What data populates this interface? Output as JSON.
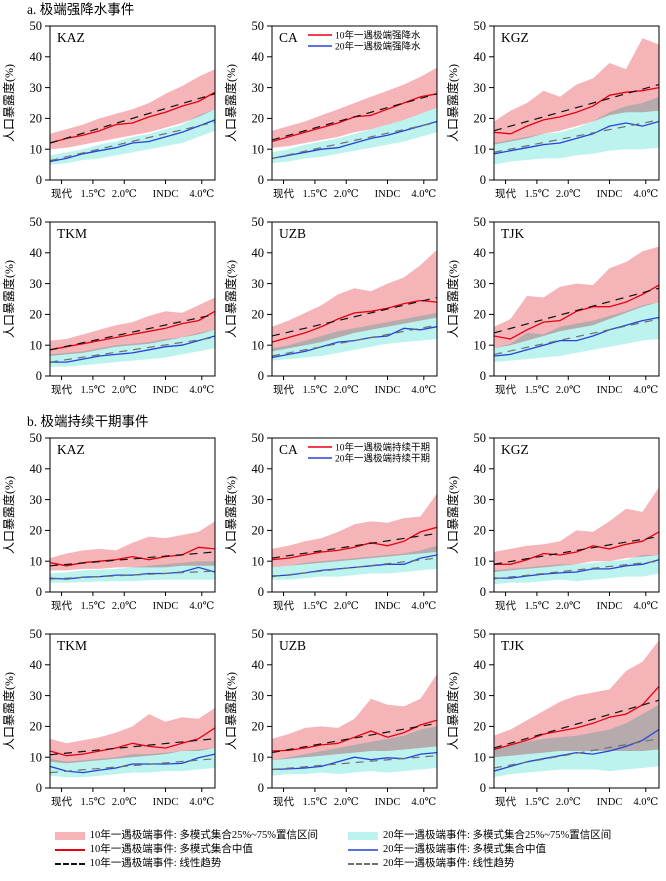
{
  "sections": [
    {
      "label": "a",
      "title": "a. 极端强降水事件"
    },
    {
      "label": "b",
      "title": "b. 极端持续干期事件"
    }
  ],
  "axis": {
    "ylabel": "人口暴露度(%)",
    "ymin": 0,
    "ymax": 50,
    "yticks": [
      0,
      10,
      20,
      30,
      40,
      50
    ],
    "xticklabels": [
      "现代",
      "1.5℃",
      "2.0℃",
      "INDC",
      "4.0℃"
    ],
    "xtickpos": [
      0.07,
      0.26,
      0.45,
      0.7,
      0.92
    ],
    "grid": false
  },
  "colors": {
    "band_10yr": "#F5B4B8",
    "band_20yr": "#BDF3EF",
    "line_10yr": "#E60012",
    "line_20yr": "#2743D9",
    "trend_10yr": "#111111",
    "trend_20yr": "#6F6F6F",
    "frame": "#000000"
  },
  "legend": {
    "left": [
      {
        "swatch": "band-10yr",
        "label": "10年一遇极端事件: 多模式集合25%~75%置信区间"
      },
      {
        "swatch": "line-10yr",
        "label": "10年一遇极端事件: 多模式集合中值"
      },
      {
        "swatch": "dash-10yr",
        "label": "10年一遇极端事件: 线性趋势"
      }
    ],
    "right": [
      {
        "swatch": "band-20yr",
        "label": "20年一遇极端事件: 多模式集合25%~75%置信区间"
      },
      {
        "swatch": "line-20yr",
        "label": "20年一遇极端事件: 多模式集合中值"
      },
      {
        "swatch": "dash-20yr",
        "label": "20年一遇极端事件: 线性趋势"
      }
    ]
  },
  "chart_data": [
    {
      "type": "line",
      "section": "a",
      "region": "KAZ",
      "median_10yr": [
        12,
        13.5,
        14.5,
        16,
        18,
        18.5,
        20.5,
        22,
        24,
        25.5,
        28.5
      ],
      "band_10yr_low": [
        10,
        10.5,
        11.5,
        12.5,
        13.5,
        14.5,
        15.5,
        17,
        18.5,
        20.5,
        23
      ],
      "band_10yr_high": [
        15,
        16.5,
        18,
        20,
        21.5,
        23,
        25,
        28,
        30.5,
        33.5,
        36
      ],
      "median_20yr": [
        6,
        7,
        8.5,
        9.5,
        10.5,
        12,
        12.5,
        14,
        15.5,
        17.5,
        19.5
      ],
      "band_20yr_low": [
        5,
        5.5,
        6.5,
        7,
        8,
        9,
        10,
        11,
        12,
        14,
        16
      ],
      "band_20yr_high": [
        8,
        9,
        10,
        11.5,
        12.5,
        14,
        15,
        16.5,
        18,
        21,
        23
      ],
      "trend_10yr": [
        12,
        28
      ],
      "trend_20yr": [
        6.3,
        18.8
      ]
    },
    {
      "type": "line",
      "section": "a",
      "region": "CA",
      "inplot_legend": [
        "10年一遇极端强降水",
        "20年一遇极端强降水"
      ],
      "median_10yr": [
        12.5,
        14,
        15.5,
        17,
        18.5,
        20.5,
        21,
        23,
        25,
        27,
        28
      ],
      "band_10yr_low": [
        10.5,
        11,
        12,
        13,
        14,
        15.5,
        16.5,
        18,
        19.5,
        21.5,
        23.5
      ],
      "band_10yr_high": [
        16,
        17.5,
        19,
        21,
        23,
        25,
        27,
        29,
        31,
        33.5,
        36.5
      ],
      "median_20yr": [
        7,
        8,
        9,
        10,
        10.5,
        12,
        13.5,
        14.5,
        16,
        17.5,
        19
      ],
      "band_20yr_low": [
        5.5,
        6,
        7,
        7.5,
        8.5,
        9.5,
        10.5,
        11.5,
        12.5,
        14,
        15.5
      ],
      "band_20yr_high": [
        9,
        10,
        11.5,
        12.5,
        13.5,
        15,
        16.5,
        18,
        19.5,
        21.5,
        23.5
      ],
      "trend_10yr": [
        13,
        28
      ],
      "trend_20yr": [
        7,
        18.7
      ]
    },
    {
      "type": "line",
      "section": "a",
      "region": "KGZ",
      "median_10yr": [
        15.5,
        15,
        17.5,
        19.5,
        20.5,
        22,
        24,
        27.5,
        28.5,
        29,
        30
      ],
      "band_10yr_low": [
        11.5,
        12.5,
        13.5,
        15,
        16,
        17.5,
        19,
        21,
        22,
        22,
        22.5
      ],
      "band_10yr_high": [
        19,
        22.5,
        25,
        29,
        27,
        31,
        33,
        38,
        36,
        46,
        44
      ],
      "median_20yr": [
        8.5,
        9.5,
        10.5,
        11.5,
        12,
        13.5,
        15,
        17.5,
        18.5,
        17.5,
        19
      ],
      "band_20yr_low": [
        5,
        6,
        6.5,
        7,
        7,
        8,
        8.5,
        9.5,
        10,
        10,
        10.5
      ],
      "band_20yr_high": [
        12,
        13,
        14,
        15,
        15.5,
        17,
        19,
        22,
        24,
        25,
        27
      ],
      "trend_10yr": [
        16,
        31
      ],
      "trend_20yr": [
        9,
        19.5
      ]
    },
    {
      "type": "line",
      "section": "a",
      "region": "TKM",
      "median_10yr": [
        8.5,
        9.5,
        10.5,
        11.5,
        12.5,
        13.5,
        14.5,
        15.5,
        17,
        18,
        21
      ],
      "band_10yr_low": [
        6.5,
        7,
        7.5,
        8.5,
        9.5,
        10,
        10.5,
        11.5,
        12.5,
        13.5,
        15
      ],
      "band_10yr_high": [
        11.5,
        12,
        13.5,
        15,
        16.5,
        17.5,
        19.5,
        21,
        20.5,
        23,
        25.5
      ],
      "median_20yr": [
        4.5,
        4.5,
        5.5,
        6.5,
        7,
        7.5,
        8.5,
        9.5,
        10,
        11.5,
        13
      ],
      "band_20yr_low": [
        3,
        3,
        3.5,
        4,
        4.5,
        5,
        5.5,
        6,
        7,
        8,
        9
      ],
      "band_20yr_high": [
        7,
        7.5,
        8,
        9,
        10,
        10.5,
        11,
        12,
        12.5,
        14,
        15
      ],
      "trend_10yr": [
        8.5,
        20
      ],
      "trend_20yr": [
        4.5,
        12.5
      ]
    },
    {
      "type": "line",
      "section": "a",
      "region": "UZB",
      "median_10yr": [
        11,
        12.5,
        14,
        16,
        18.5,
        20.5,
        21,
        22,
        23.5,
        24.5,
        24
      ],
      "band_10yr_low": [
        8,
        9,
        10,
        11,
        12.5,
        14,
        15,
        16,
        17,
        18,
        19
      ],
      "band_10yr_high": [
        16,
        18,
        20.5,
        23,
        26.5,
        28.5,
        27.5,
        30,
        32,
        36,
        41
      ],
      "median_20yr": [
        6,
        7,
        8,
        9.5,
        11,
        11.5,
        12.5,
        13,
        15.5,
        15,
        16
      ],
      "band_20yr_low": [
        5,
        5.5,
        6,
        6.5,
        7.5,
        8.5,
        9.5,
        10.5,
        11,
        11.5,
        12
      ],
      "band_20yr_high": [
        9,
        10,
        11.5,
        13,
        14.5,
        15.5,
        16.5,
        17.5,
        18.5,
        19.5,
        20.5
      ],
      "trend_10yr": [
        13,
        25.5
      ],
      "trend_20yr": [
        6.5,
        16.5
      ]
    },
    {
      "type": "line",
      "section": "a",
      "region": "TJK",
      "median_10yr": [
        13,
        12,
        15,
        17.5,
        18,
        21,
        22.5,
        22.5,
        24,
        26.5,
        29.5
      ],
      "band_10yr_low": [
        9,
        10,
        11.5,
        13,
        14.5,
        15.5,
        16.5,
        18.5,
        20.5,
        22.5,
        24
      ],
      "band_10yr_high": [
        16,
        18.5,
        26,
        25.5,
        29,
        30,
        29.5,
        35,
        37,
        40.5,
        42
      ],
      "median_20yr": [
        6.5,
        7,
        8.5,
        10,
        11.5,
        11.5,
        13,
        15,
        16.5,
        18,
        19
      ],
      "band_20yr_low": [
        4.5,
        5,
        5.5,
        6,
        6.5,
        7.5,
        8.5,
        9.5,
        10.5,
        11.5,
        12
      ],
      "band_20yr_high": [
        9,
        10.5,
        14,
        13.5,
        16,
        17,
        18,
        19.5,
        21,
        23,
        24
      ],
      "trend_10yr": [
        14,
        28.5
      ],
      "trend_20yr": [
        7,
        18.5
      ]
    },
    {
      "type": "line",
      "section": "b",
      "region": "KAZ",
      "median_10yr": [
        9.5,
        8.5,
        9.5,
        10,
        10.5,
        11.5,
        10.5,
        11.5,
        12,
        14.5,
        14
      ],
      "band_10yr_low": [
        7,
        7,
        7.5,
        7.5,
        8,
        8,
        8,
        8,
        8.5,
        8.5,
        8.5
      ],
      "band_10yr_high": [
        11,
        12.5,
        13.5,
        14,
        13.5,
        16,
        18,
        17.5,
        18.5,
        19.5,
        23
      ],
      "median_20yr": [
        4.5,
        4.2,
        4.8,
        5,
        5.5,
        5.5,
        6,
        6,
        6.5,
        8,
        6.5
      ],
      "band_20yr_low": [
        3,
        3,
        3.2,
        3.4,
        3.5,
        3.5,
        3.8,
        4,
        4,
        4,
        4
      ],
      "band_20yr_high": [
        6,
        6.5,
        7,
        7.2,
        7.5,
        8,
        8.5,
        9,
        9.5,
        10,
        10
      ],
      "trend_10yr": [
        8.5,
        13
      ],
      "trend_20yr": [
        4.2,
        6.8
      ]
    },
    {
      "type": "line",
      "section": "b",
      "region": "CA",
      "inplot_legend": [
        "10年一遇极端持续干期",
        "20年一遇极端持续干期"
      ],
      "median_10yr": [
        10.5,
        11,
        12,
        13,
        13.5,
        14.5,
        16,
        15,
        16.5,
        19.5,
        21
      ],
      "band_10yr_low": [
        8,
        8.5,
        9,
        9.5,
        10,
        10.5,
        11,
        11.5,
        12,
        12.5,
        13
      ],
      "band_10yr_high": [
        14,
        15,
        16.5,
        17.5,
        19.5,
        22,
        23,
        22.5,
        24,
        24.5,
        32
      ],
      "median_20yr": [
        5.2,
        5.5,
        6.2,
        7,
        7.5,
        8,
        8.5,
        9,
        9,
        11,
        12
      ],
      "band_20yr_low": [
        4,
        4,
        4.5,
        5,
        5,
        5.5,
        6,
        6,
        6.5,
        7,
        7.5
      ],
      "band_20yr_high": [
        8,
        8.5,
        9.5,
        10,
        10.5,
        11,
        11.5,
        12,
        12.5,
        13.5,
        15
      ],
      "trend_10yr": [
        11,
        19
      ],
      "trend_20yr": [
        5,
        11
      ]
    },
    {
      "type": "line",
      "section": "b",
      "region": "KGZ",
      "median_10yr": [
        9,
        9,
        10.5,
        12.5,
        12,
        13,
        15,
        14,
        15.5,
        16.5,
        19.5
      ],
      "band_10yr_low": [
        6.5,
        7,
        7.5,
        8,
        8.5,
        9,
        10,
        10,
        11,
        11.5,
        12
      ],
      "band_10yr_high": [
        13,
        14,
        15,
        15.5,
        16.5,
        20,
        19.5,
        23,
        27,
        26,
        34
      ],
      "median_20yr": [
        4.5,
        4.5,
        5.2,
        5.8,
        6.2,
        6.5,
        7.5,
        7.5,
        8.5,
        9,
        10.5
      ],
      "band_20yr_low": [
        2.5,
        3,
        3,
        3.5,
        4,
        3.5,
        4,
        4.5,
        5,
        5,
        6
      ],
      "band_20yr_high": [
        7,
        7.5,
        8,
        8.5,
        9,
        9,
        9.5,
        10,
        10.5,
        12,
        12
      ],
      "trend_10yr": [
        9,
        18
      ],
      "trend_20yr": [
        4.3,
        10
      ]
    },
    {
      "type": "line",
      "section": "b",
      "region": "TKM",
      "median_10yr": [
        12,
        10.5,
        11,
        12,
        13,
        14.5,
        13.5,
        13,
        14.5,
        16,
        19.5
      ],
      "band_10yr_low": [
        8.5,
        8,
        8.5,
        9,
        9.5,
        10,
        10.5,
        11,
        12,
        12,
        13
      ],
      "band_10yr_high": [
        16,
        14.5,
        15.5,
        16.5,
        18,
        20,
        24,
        21.5,
        23,
        22.5,
        26
      ],
      "median_20yr": [
        7,
        5.5,
        5,
        5.8,
        6.5,
        7.8,
        7.8,
        7.8,
        8,
        9.8,
        11
      ],
      "band_20yr_low": [
        4,
        3.5,
        3.5,
        4,
        4.5,
        5,
        5,
        5.5,
        5.5,
        6,
        6.5
      ],
      "band_20yr_high": [
        9.5,
        8.5,
        9,
        9.5,
        10,
        11,
        11,
        11.5,
        12,
        12.5,
        13
      ],
      "trend_10yr": [
        10.8,
        16
      ],
      "trend_20yr": [
        5,
        9.5
      ]
    },
    {
      "type": "line",
      "section": "b",
      "region": "UZB",
      "median_10yr": [
        12,
        12.2,
        13,
        14,
        14.5,
        16.5,
        18.5,
        16.5,
        18,
        20.5,
        22
      ],
      "band_10yr_low": [
        9,
        9.5,
        10,
        10.5,
        11,
        11.5,
        12,
        12,
        12.5,
        13,
        13.5
      ],
      "band_10yr_high": [
        16,
        17.5,
        19.5,
        20,
        19.5,
        22.5,
        29,
        27,
        26.5,
        29,
        37
      ],
      "median_20yr": [
        6,
        6.2,
        6.5,
        7,
        8.5,
        10,
        9.2,
        9.8,
        9.5,
        11,
        11.5
      ],
      "band_20yr_low": [
        4,
        4.5,
        4.5,
        5,
        4.5,
        5,
        5.5,
        5,
        5.5,
        6,
        6.5
      ],
      "band_20yr_high": [
        9,
        10,
        11,
        12,
        13,
        14,
        15,
        16,
        17,
        19,
        20
      ],
      "trend_10yr": [
        11.5,
        21
      ],
      "trend_20yr": [
        6,
        10.5
      ]
    },
    {
      "type": "line",
      "section": "b",
      "region": "TJK",
      "median_10yr": [
        12.5,
        14,
        15.5,
        17.5,
        18.5,
        19.5,
        21,
        23,
        24,
        27,
        33
      ],
      "band_10yr_low": [
        10,
        10.5,
        11,
        11.5,
        12,
        12,
        12,
        12,
        12,
        12,
        12.5
      ],
      "band_10yr_high": [
        17,
        19,
        22,
        25,
        28,
        30,
        31,
        32,
        38,
        41,
        48
      ],
      "median_20yr": [
        5.5,
        7,
        8.5,
        9.5,
        10.5,
        11.5,
        11,
        12,
        13.5,
        15.5,
        19
      ],
      "band_20yr_low": [
        3.5,
        4.5,
        5,
        5.5,
        6,
        6,
        6,
        5.5,
        6,
        6.5,
        7
      ],
      "band_20yr_high": [
        13,
        14,
        15,
        16,
        16.5,
        17,
        18,
        19,
        21,
        24,
        27
      ],
      "trend_10yr": [
        13,
        28.5
      ],
      "trend_20yr": [
        6.5,
        16
      ]
    }
  ]
}
